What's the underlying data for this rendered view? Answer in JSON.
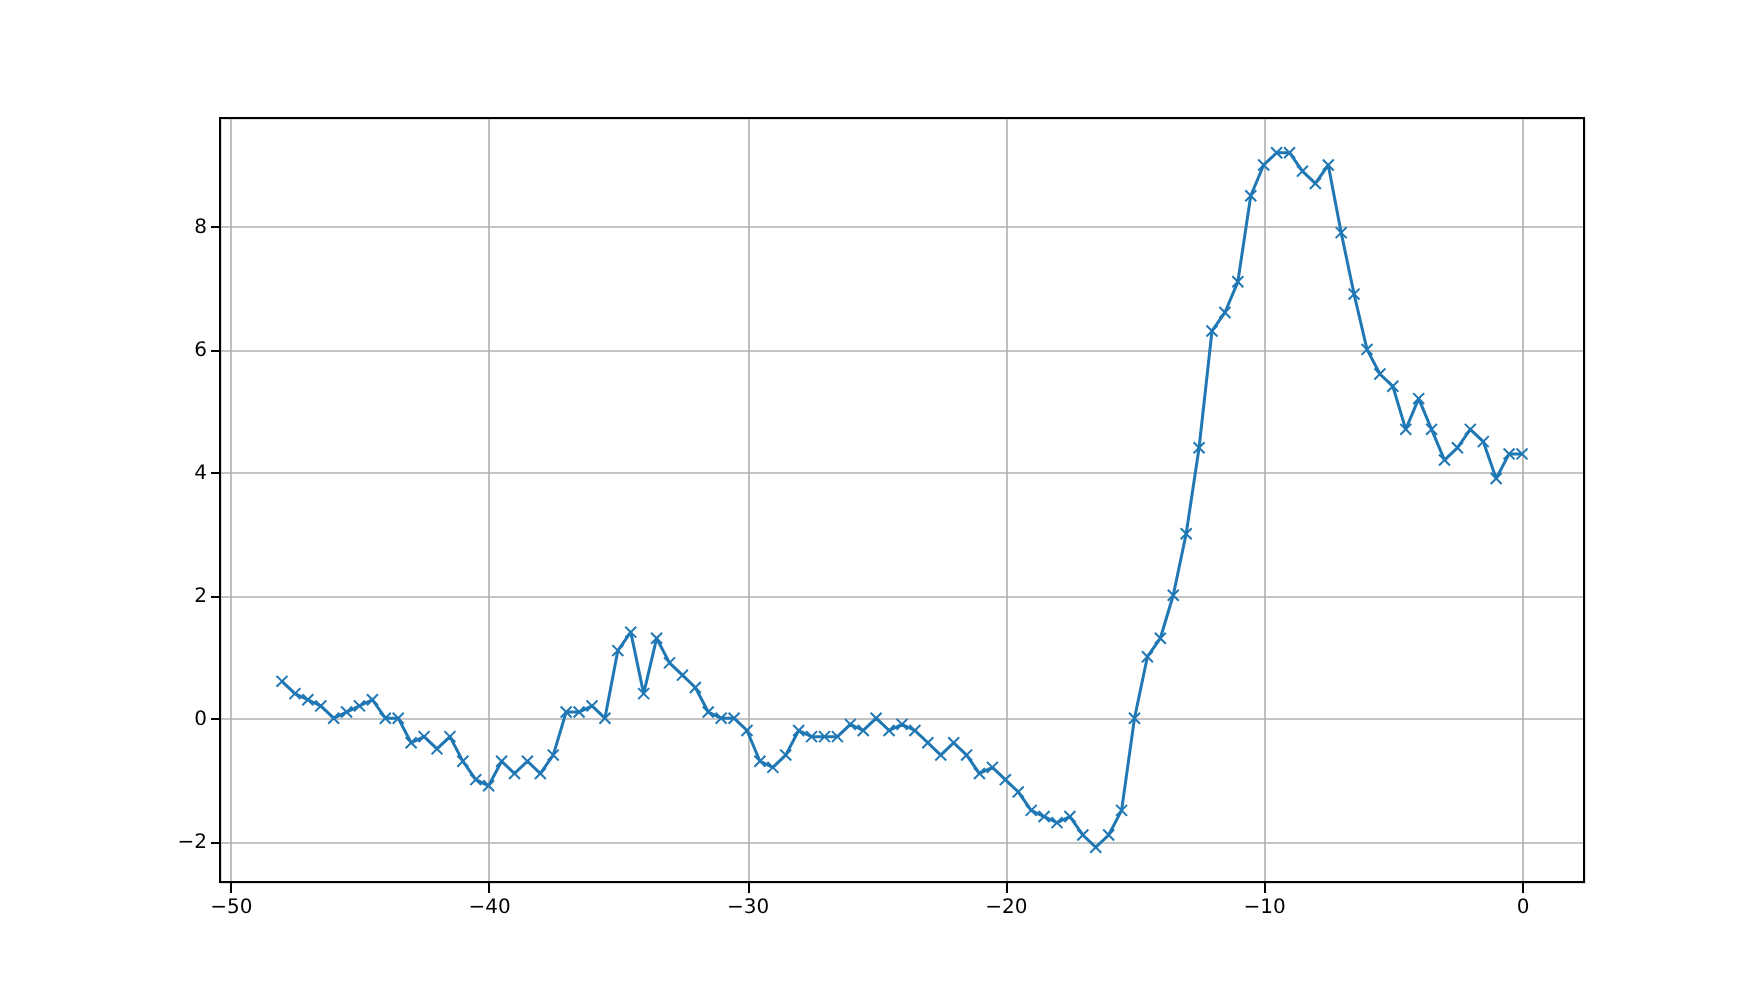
{
  "chart_data": {
    "type": "line",
    "marker": "cross",
    "line_style": "solid",
    "grid": true,
    "xlim": [
      -50.4,
      2.4
    ],
    "ylim": [
      -2.665,
      9.765
    ],
    "xticks": [
      -50,
      -40,
      -30,
      -20,
      -10,
      0
    ],
    "yticks": [
      -2,
      0,
      2,
      4,
      6,
      8
    ],
    "x": [
      -48,
      -47.5,
      -47,
      -46.5,
      -46,
      -45.5,
      -45,
      -44.5,
      -44,
      -43.5,
      -43,
      -42.5,
      -42,
      -41.5,
      -41,
      -40.5,
      -40,
      -39.5,
      -39,
      -38.5,
      -38,
      -37.5,
      -37,
      -36.5,
      -36,
      -35.5,
      -35,
      -34.5,
      -34,
      -33.5,
      -33,
      -32.5,
      -32,
      -31.5,
      -31,
      -30.5,
      -30,
      -29.5,
      -29,
      -28.5,
      -28,
      -27.5,
      -27,
      -26.5,
      -26,
      -25.5,
      -25,
      -24.5,
      -24,
      -23.5,
      -23,
      -22.5,
      -22,
      -21.5,
      -21,
      -20.5,
      -20,
      -19.5,
      -19,
      -18.5,
      -18,
      -17.5,
      -17,
      -16.5,
      -16,
      -15.5,
      -15,
      -14.5,
      -14,
      -13.5,
      -13,
      -12.5,
      -12,
      -11.5,
      -11,
      -10.5,
      -10,
      -9.5,
      -9,
      -8.5,
      -8,
      -7.5,
      -7,
      -6.5,
      -6,
      -5.5,
      -5,
      -4.5,
      -4,
      -3.5,
      -3,
      -2.5,
      -2,
      -1.5,
      -1,
      -0.5,
      0
    ],
    "series": [
      {
        "color": "#1f77b4",
        "values": [
          0.6,
          0.4,
          0.3,
          0.2,
          0.0,
          0.1,
          0.2,
          0.3,
          0.0,
          0.0,
          -0.4,
          -0.3,
          -0.5,
          -0.3,
          -0.7,
          -1.0,
          -1.1,
          -0.7,
          -0.9,
          -0.7,
          -0.9,
          -0.6,
          0.1,
          0.1,
          0.2,
          0.0,
          1.1,
          1.4,
          0.4,
          1.3,
          0.9,
          0.7,
          0.5,
          0.1,
          0.0,
          0.0,
          -0.2,
          -0.7,
          -0.8,
          -0.6,
          -0.2,
          -0.3,
          -0.3,
          -0.3,
          -0.1,
          -0.2,
          0.0,
          -0.2,
          -0.1,
          -0.2,
          -0.4,
          -0.6,
          -0.4,
          -0.6,
          -0.9,
          -0.8,
          -1.0,
          -1.2,
          -1.5,
          -1.6,
          -1.7,
          -1.6,
          -1.9,
          -2.1,
          -1.9,
          -1.5,
          0.0,
          1.0,
          1.3,
          2.0,
          3.0,
          4.4,
          6.3,
          6.6,
          7.1,
          8.5,
          9.0,
          9.2,
          9.2,
          8.9,
          8.7,
          9.0,
          7.9,
          6.9,
          6.0,
          5.6,
          5.4,
          4.7,
          5.2,
          4.7,
          4.2,
          4.4,
          4.7,
          4.5,
          3.9,
          4.3,
          4.3
        ]
      }
    ]
  }
}
